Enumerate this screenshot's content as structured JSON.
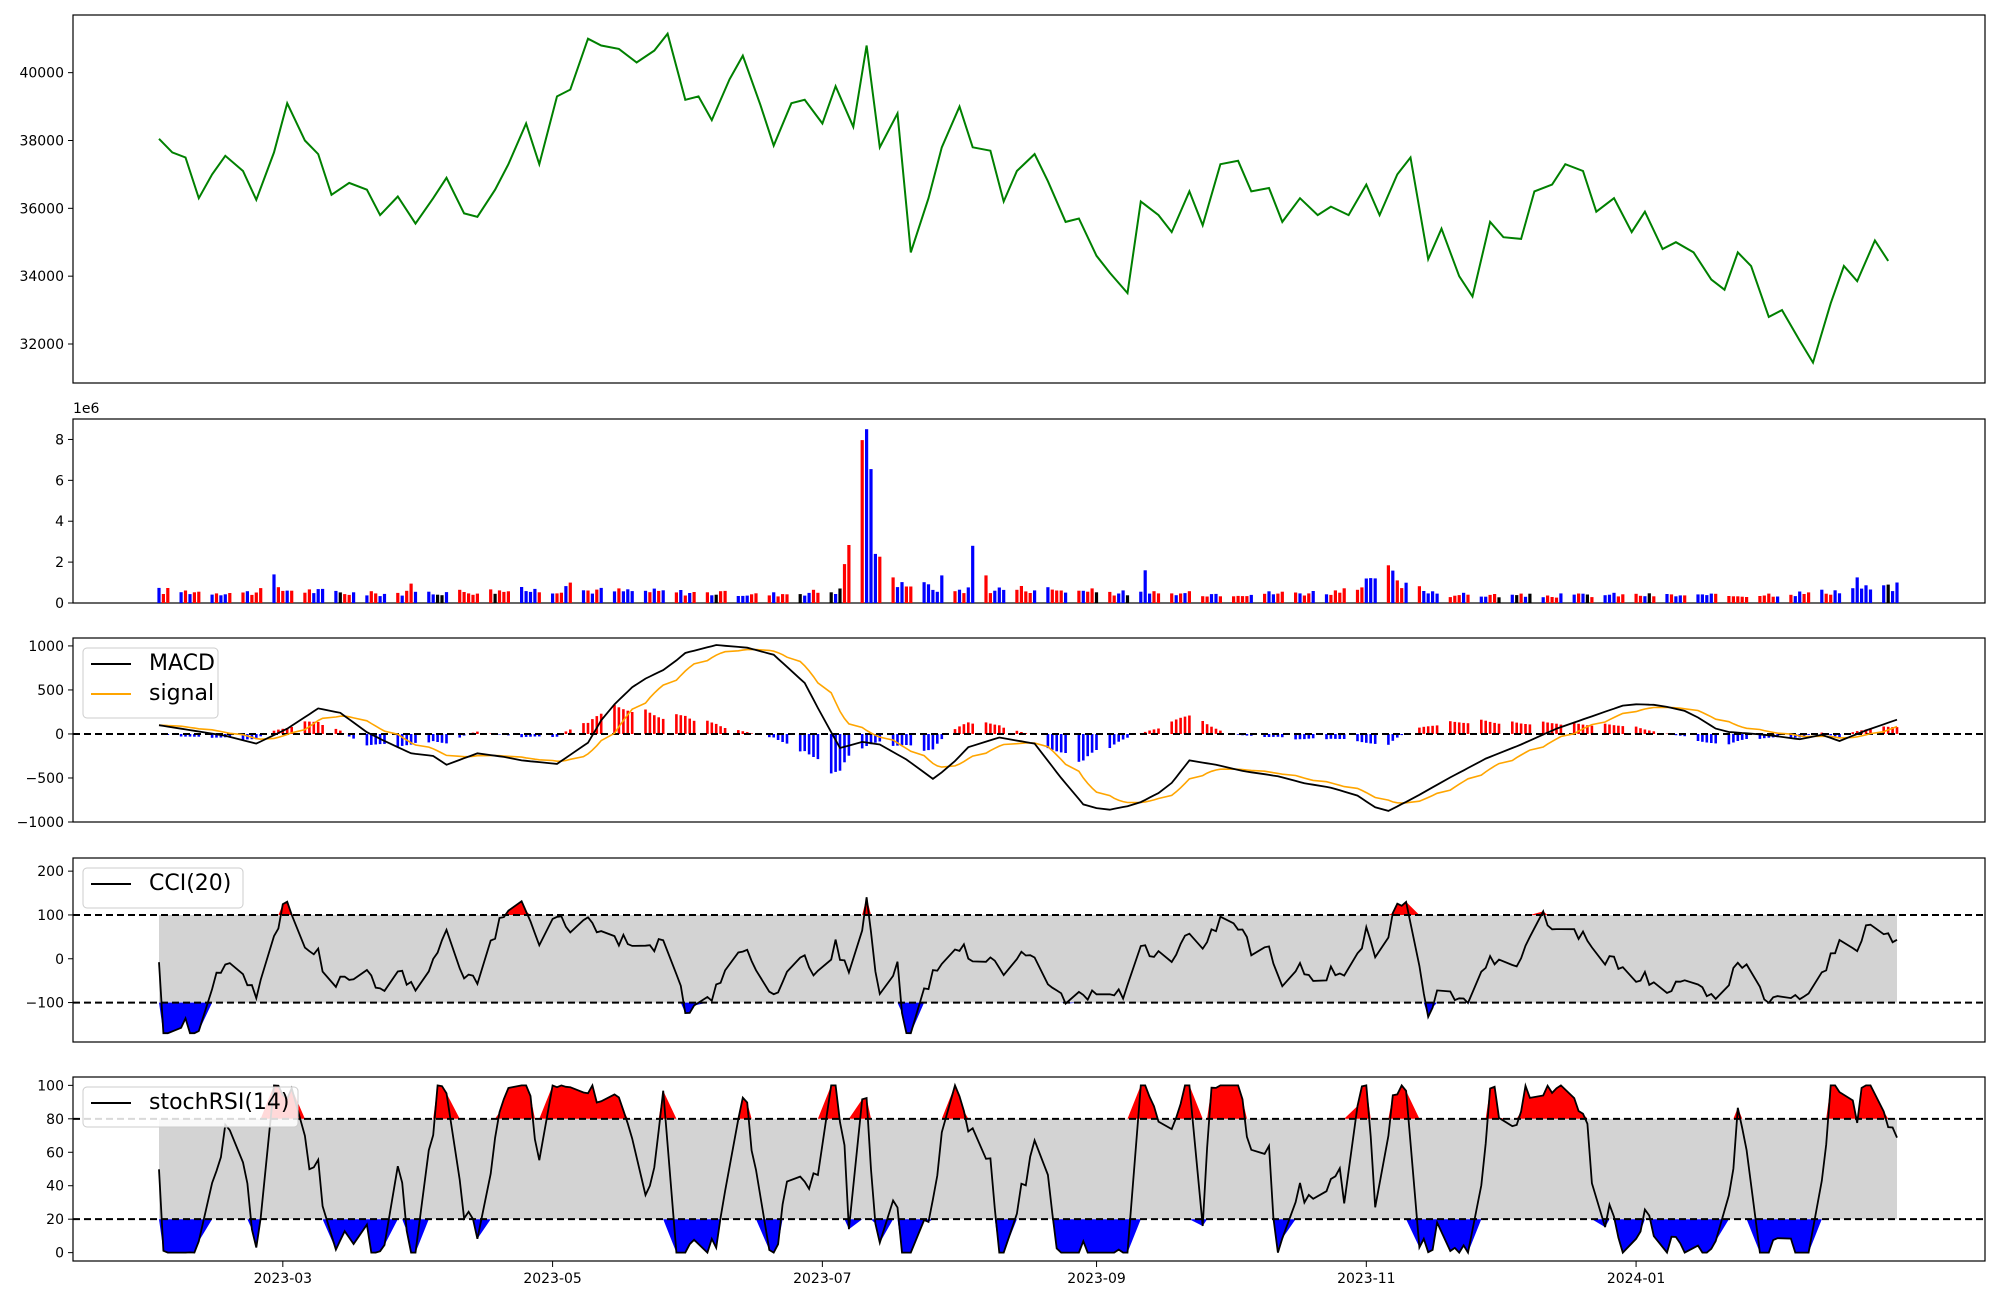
{
  "chart_data": [
    {
      "type": "line",
      "panel": "price",
      "colors": {
        "line": "#008000"
      },
      "ylim": [
        30850,
        41700
      ],
      "y_ticks": [
        "32000",
        "34000",
        "36000",
        "38000",
        "40000"
      ],
      "series": [
        {
          "points": [
            [
              "2023-02-01",
              38050
            ],
            [
              "2023-02-04",
              37650
            ],
            [
              "2023-02-07",
              37500
            ],
            [
              "2023-02-10",
              36300
            ],
            [
              "2023-02-13",
              37000
            ],
            [
              "2023-02-16",
              37550
            ],
            [
              "2023-02-20",
              37100
            ],
            [
              "2023-02-23",
              36250
            ],
            [
              "2023-02-27",
              37650
            ],
            [
              "2023-03-02",
              39100
            ],
            [
              "2023-03-06",
              38000
            ],
            [
              "2023-03-09",
              37600
            ],
            [
              "2023-03-12",
              36400
            ],
            [
              "2023-03-16",
              36750
            ],
            [
              "2023-03-20",
              36550
            ],
            [
              "2023-03-23",
              35800
            ],
            [
              "2023-03-27",
              36350
            ],
            [
              "2023-03-31",
              35550
            ],
            [
              "2023-04-04",
              36300
            ],
            [
              "2023-04-07",
              36900
            ],
            [
              "2023-04-11",
              35850
            ],
            [
              "2023-04-14",
              35750
            ],
            [
              "2023-04-18",
              36550
            ],
            [
              "2023-04-21",
              37300
            ],
            [
              "2023-04-25",
              38500
            ],
            [
              "2023-04-28",
              37300
            ],
            [
              "2023-05-02",
              39300
            ],
            [
              "2023-05-05",
              39500
            ],
            [
              "2023-05-09",
              41000
            ],
            [
              "2023-05-12",
              40800
            ],
            [
              "2023-05-16",
              40700
            ],
            [
              "2023-05-20",
              40300
            ],
            [
              "2023-05-24",
              40650
            ],
            [
              "2023-05-27",
              41150
            ],
            [
              "2023-05-31",
              39200
            ],
            [
              "2023-06-03",
              39300
            ],
            [
              "2023-06-06",
              38600
            ],
            [
              "2023-06-10",
              39800
            ],
            [
              "2023-06-13",
              40500
            ],
            [
              "2023-06-17",
              39050
            ],
            [
              "2023-06-20",
              37850
            ],
            [
              "2023-06-24",
              39100
            ],
            [
              "2023-06-27",
              39200
            ],
            [
              "2023-07-01",
              38500
            ],
            [
              "2023-07-04",
              39600
            ],
            [
              "2023-07-08",
              38400
            ],
            [
              "2023-07-11",
              40800
            ],
            [
              "2023-07-14",
              37800
            ],
            [
              "2023-07-18",
              38800
            ],
            [
              "2023-07-21",
              34700
            ],
            [
              "2023-07-25",
              36300
            ],
            [
              "2023-07-28",
              37800
            ],
            [
              "2023-08-01",
              39000
            ],
            [
              "2023-08-04",
              37800
            ],
            [
              "2023-08-08",
              37700
            ],
            [
              "2023-08-11",
              36200
            ],
            [
              "2023-08-14",
              37100
            ],
            [
              "2023-08-18",
              37600
            ],
            [
              "2023-08-21",
              36800
            ],
            [
              "2023-08-25",
              35600
            ],
            [
              "2023-08-28",
              35700
            ],
            [
              "2023-09-01",
              34600
            ],
            [
              "2023-09-04",
              34100
            ],
            [
              "2023-09-08",
              33500
            ],
            [
              "2023-09-11",
              36200
            ],
            [
              "2023-09-15",
              35800
            ],
            [
              "2023-09-18",
              35300
            ],
            [
              "2023-09-22",
              36500
            ],
            [
              "2023-09-25",
              35500
            ],
            [
              "2023-09-29",
              37300
            ],
            [
              "2023-10-03",
              37400
            ],
            [
              "2023-10-06",
              36500
            ],
            [
              "2023-10-10",
              36600
            ],
            [
              "2023-10-13",
              35600
            ],
            [
              "2023-10-17",
              36300
            ],
            [
              "2023-10-21",
              35800
            ],
            [
              "2023-10-24",
              36050
            ],
            [
              "2023-10-28",
              35800
            ],
            [
              "2023-11-01",
              36700
            ],
            [
              "2023-11-04",
              35800
            ],
            [
              "2023-11-08",
              37000
            ],
            [
              "2023-11-11",
              37500
            ],
            [
              "2023-11-15",
              34500
            ],
            [
              "2023-11-18",
              35400
            ],
            [
              "2023-11-22",
              34000
            ],
            [
              "2023-11-25",
              33400
            ],
            [
              "2023-11-29",
              35600
            ],
            [
              "2023-12-02",
              35150
            ],
            [
              "2023-12-06",
              35100
            ],
            [
              "2023-12-09",
              36500
            ],
            [
              "2023-12-13",
              36700
            ],
            [
              "2023-12-16",
              37300
            ],
            [
              "2023-12-20",
              37100
            ],
            [
              "2023-12-23",
              35900
            ],
            [
              "2023-12-27",
              36300
            ],
            [
              "2023-12-31",
              35300
            ],
            [
              "2024-01-03",
              35900
            ],
            [
              "2024-01-07",
              34800
            ],
            [
              "2024-01-10",
              35000
            ],
            [
              "2024-01-14",
              34700
            ],
            [
              "2024-01-18",
              33900
            ],
            [
              "2024-01-21",
              33600
            ],
            [
              "2024-01-24",
              34700
            ],
            [
              "2024-01-27",
              34300
            ],
            [
              "2024-01-31",
              32800
            ],
            [
              "2024-02-03",
              33000
            ],
            [
              "2024-02-07",
              32100
            ],
            [
              "2024-02-10",
              31450
            ],
            [
              "2024-02-14",
              33200
            ],
            [
              "2024-02-17",
              34300
            ],
            [
              "2024-02-20",
              33850
            ],
            [
              "2024-02-24",
              35050
            ],
            [
              "2024-02-27",
              34450
            ]
          ]
        }
      ]
    },
    {
      "type": "bar",
      "panel": "volume",
      "ylim": [
        0,
        9000000
      ],
      "y_ticks": [
        "0",
        "2",
        "4",
        "6",
        "8"
      ],
      "offset_label": "1e6",
      "colors": {
        "up": "#ff0000",
        "down": "#0000ff",
        "flat": "#000000"
      },
      "keypoints": [
        [
          "2023-02-01",
          600000
        ],
        [
          "2023-02-20",
          500000
        ],
        [
          "2023-03-02",
          650000
        ],
        [
          "2023-03-20",
          450000
        ],
        [
          "2023-04-10",
          550000
        ],
        [
          "2023-05-02",
          650000
        ],
        [
          "2023-05-27",
          550000
        ],
        [
          "2023-06-17",
          400000
        ],
        [
          "2023-07-05",
          600000
        ],
        [
          "2023-07-11",
          8500000
        ],
        [
          "2023-07-13",
          2400000
        ],
        [
          "2023-07-16",
          1100000
        ],
        [
          "2023-07-28",
          700000
        ],
        [
          "2023-08-01",
          650000
        ],
        [
          "2023-08-18",
          700000
        ],
        [
          "2023-09-06",
          500000
        ],
        [
          "2023-09-14",
          450000
        ],
        [
          "2023-10-01",
          450000
        ],
        [
          "2023-10-18",
          500000
        ],
        [
          "2023-11-01",
          600000
        ],
        [
          "2023-11-05",
          2000000
        ],
        [
          "2023-11-08",
          900000
        ],
        [
          "2023-11-20",
          400000
        ],
        [
          "2023-12-10",
          350000
        ],
        [
          "2023-12-27",
          400000
        ],
        [
          "2024-01-21",
          350000
        ],
        [
          "2024-02-10",
          500000
        ],
        [
          "2024-02-27",
          800000
        ]
      ],
      "spikes": [
        [
          "2023-02-27",
          1400000
        ],
        [
          "2023-03-30",
          950000
        ],
        [
          "2023-05-05",
          1000000
        ],
        [
          "2023-07-11",
          8500000
        ],
        [
          "2023-07-13",
          2400000
        ],
        [
          "2023-07-17",
          1250000
        ],
        [
          "2023-07-28",
          1350000
        ],
        [
          "2023-08-04",
          2800000
        ],
        [
          "2023-08-07",
          1350000
        ],
        [
          "2023-09-12",
          1600000
        ],
        [
          "2023-11-01",
          1200000
        ],
        [
          "2023-11-05",
          2050000
        ],
        [
          "2023-12-09",
          850000
        ],
        [
          "2024-01-14",
          950000
        ],
        [
          "2024-02-20",
          1250000
        ],
        [
          "2024-02-24",
          900000
        ],
        [
          "2024-02-27",
          900000
        ]
      ]
    },
    {
      "type": "line",
      "panel": "macd",
      "ylim": [
        -1000,
        1090
      ],
      "y_ticks": [
        "−1000",
        "−500",
        "0",
        "500",
        "1000"
      ],
      "reference_lines": [
        0
      ],
      "colors": {
        "macd": "#000000",
        "signal": "#ffa500",
        "hist_pos": "#ff0000",
        "hist_neg": "#0000ff"
      },
      "series": [
        {
          "name": "MACD",
          "points": [
            [
              "2023-02-01",
              100
            ],
            [
              "2023-02-16",
              -20
            ],
            [
              "2023-02-23",
              -110
            ],
            [
              "2023-03-02",
              60
            ],
            [
              "2023-03-09",
              290
            ],
            [
              "2023-03-14",
              240
            ],
            [
              "2023-03-20",
              20
            ],
            [
              "2023-03-24",
              -80
            ],
            [
              "2023-03-30",
              -220
            ],
            [
              "2023-04-04",
              -250
            ],
            [
              "2023-04-07",
              -350
            ],
            [
              "2023-04-14",
              -220
            ],
            [
              "2023-04-20",
              -260
            ],
            [
              "2023-04-24",
              -300
            ],
            [
              "2023-05-02",
              -340
            ],
            [
              "2023-05-09",
              -100
            ],
            [
              "2023-05-13",
              240
            ],
            [
              "2023-05-20",
              580
            ],
            [
              "2023-05-27",
              750
            ],
            [
              "2023-05-31",
              920
            ],
            [
              "2023-06-07",
              1010
            ],
            [
              "2023-06-14",
              980
            ],
            [
              "2023-06-20",
              900
            ],
            [
              "2023-06-27",
              580
            ],
            [
              "2023-07-01",
              200
            ],
            [
              "2023-07-05",
              -160
            ],
            [
              "2023-07-10",
              -90
            ],
            [
              "2023-07-14",
              -120
            ],
            [
              "2023-07-20",
              -290
            ],
            [
              "2023-07-26",
              -510
            ],
            [
              "2023-07-30",
              -360
            ],
            [
              "2023-08-03",
              -150
            ],
            [
              "2023-08-10",
              -40
            ],
            [
              "2023-08-18",
              -110
            ],
            [
              "2023-08-24",
              -500
            ],
            [
              "2023-08-29",
              -800
            ],
            [
              "2023-09-03",
              -870
            ],
            [
              "2023-09-10",
              -800
            ],
            [
              "2023-09-17",
              -620
            ],
            [
              "2023-09-22",
              -300
            ],
            [
              "2023-09-28",
              -350
            ],
            [
              "2023-10-04",
              -420
            ],
            [
              "2023-10-12",
              -480
            ],
            [
              "2023-10-18",
              -560
            ],
            [
              "2023-10-24",
              -610
            ],
            [
              "2023-10-30",
              -700
            ],
            [
              "2023-11-05",
              -900
            ],
            [
              "2023-11-12",
              -720
            ],
            [
              "2023-11-19",
              -520
            ],
            [
              "2023-11-28",
              -280
            ],
            [
              "2023-12-06",
              -120
            ],
            [
              "2023-12-14",
              60
            ],
            [
              "2023-12-22",
              200
            ],
            [
              "2023-12-30",
              340
            ],
            [
              "2024-01-06",
              330
            ],
            [
              "2024-01-13",
              250
            ],
            [
              "2024-01-20",
              30
            ],
            [
              "2024-01-28",
              0
            ],
            [
              "2024-02-01",
              -20
            ],
            [
              "2024-02-07",
              -60
            ],
            [
              "2024-02-12",
              -10
            ],
            [
              "2024-02-16",
              -80
            ],
            [
              "2024-02-22",
              40
            ],
            [
              "2024-03-01",
              180
            ]
          ]
        }
      ]
    }
  ],
  "legends": {
    "macd": "MACD",
    "signal": "signal",
    "cci": "CCI(20)",
    "stochrsi": "stochRSI(14)"
  },
  "cci_panel": {
    "ylim": [
      -190,
      230
    ],
    "y_ticks": [
      "−100",
      "0",
      "100",
      "200"
    ],
    "reference_lines": [
      100,
      -100
    ],
    "colors": {
      "line": "#000000",
      "band": "#d3d3d3",
      "over": "#ff0000",
      "under": "#0000ff"
    }
  },
  "stochrsi_panel": {
    "ylim": [
      -5,
      105
    ],
    "y_ticks": [
      "0",
      "20",
      "40",
      "60",
      "80",
      "100"
    ],
    "reference_lines": [
      80,
      20
    ],
    "colors": {
      "line": "#000000",
      "band": "#d3d3d3",
      "over": "#ff0000",
      "under": "#0000ff"
    }
  },
  "x_axis": {
    "ticks": [
      "2023-03",
      "2023-05",
      "2023-07",
      "2023-09",
      "2023-11",
      "2024-01"
    ]
  }
}
